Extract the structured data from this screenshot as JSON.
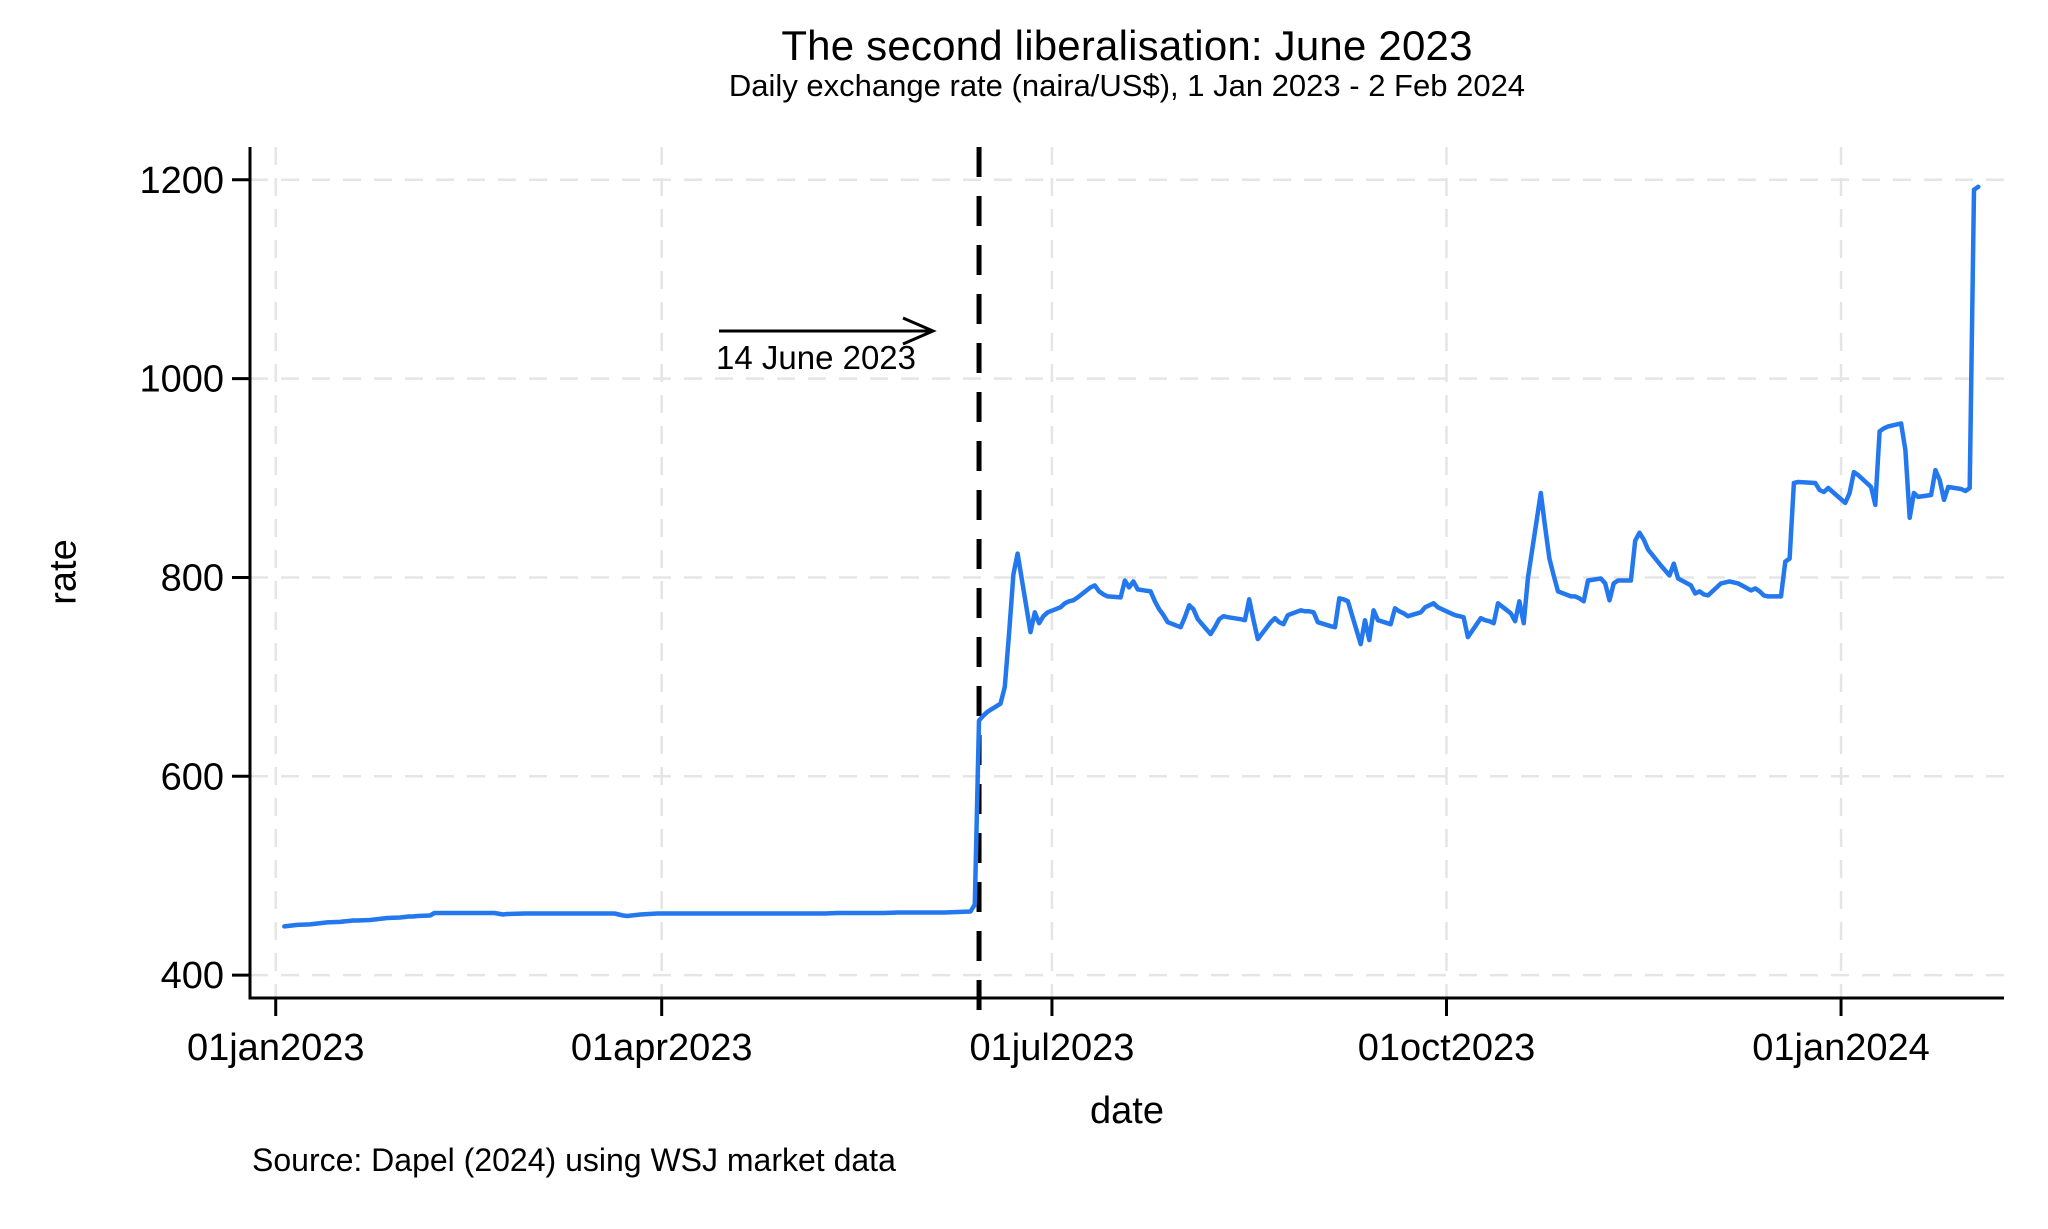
{
  "page": {
    "background": "#ffffff"
  },
  "chart_data": {
    "type": "line",
    "title": "The second liberalisation: June 2023",
    "subtitle": "Daily exchange rate (naira/US$), 1 Jan 2023 - 2 Feb 2024",
    "xlabel": "date",
    "ylabel": "rate",
    "source_note": "Source: Dapel (2024) using WSJ market data",
    "grid": true,
    "legend": "none",
    "ylim": [
      377,
      1233
    ],
    "xlim": [
      "2022-12-26",
      "2024-02-08"
    ],
    "y_ticks": [
      400,
      600,
      800,
      1000,
      1200
    ],
    "x_ticks": [
      {
        "label": "01jan2023",
        "date": "2023-01-01"
      },
      {
        "label": "01apr2023",
        "date": "2023-04-01"
      },
      {
        "label": "01jul2023",
        "date": "2023-07-01"
      },
      {
        "label": "01oct2023",
        "date": "2023-10-01"
      },
      {
        "label": "01jan2024",
        "date": "2024-01-01"
      }
    ],
    "reference_line": {
      "date": "2023-06-14",
      "color": "#000000",
      "style": "dashed"
    },
    "annotation": {
      "text": "14 June 2023",
      "arrow": true
    },
    "colors": {
      "series": "#2478ee",
      "grid": "#e5e5e5",
      "axis": "#000000"
    },
    "series": [
      {
        "name": "Daily exchange rate (naira/US$)",
        "color": "#2478ee",
        "points": [
          [
            "2023-01-03",
            449
          ],
          [
            "2023-01-04",
            449.5
          ],
          [
            "2023-01-05",
            450
          ],
          [
            "2023-01-06",
            450.5
          ],
          [
            "2023-01-09",
            451
          ],
          [
            "2023-01-10",
            451.5
          ],
          [
            "2023-01-11",
            452
          ],
          [
            "2023-01-12",
            452.5
          ],
          [
            "2023-01-13",
            453
          ],
          [
            "2023-01-16",
            453.5
          ],
          [
            "2023-01-17",
            454
          ],
          [
            "2023-01-18",
            454.5
          ],
          [
            "2023-01-19",
            455
          ],
          [
            "2023-01-20",
            455
          ],
          [
            "2023-01-23",
            455.5
          ],
          [
            "2023-01-24",
            456
          ],
          [
            "2023-01-25",
            456.5
          ],
          [
            "2023-01-26",
            457
          ],
          [
            "2023-01-27",
            457.5
          ],
          [
            "2023-01-30",
            458
          ],
          [
            "2023-01-31",
            458.5
          ],
          [
            "2023-02-01",
            459
          ],
          [
            "2023-02-02",
            459
          ],
          [
            "2023-02-03",
            459.5
          ],
          [
            "2023-02-06",
            460
          ],
          [
            "2023-02-07",
            462.5
          ],
          [
            "2023-02-08",
            462.5
          ],
          [
            "2023-02-10",
            462.5
          ],
          [
            "2023-02-14",
            462.5
          ],
          [
            "2023-02-17",
            462.5
          ],
          [
            "2023-02-21",
            462.5
          ],
          [
            "2023-02-23",
            461
          ],
          [
            "2023-02-24",
            461.5
          ],
          [
            "2023-02-28",
            462
          ],
          [
            "2023-03-03",
            462
          ],
          [
            "2023-03-07",
            462
          ],
          [
            "2023-03-10",
            462
          ],
          [
            "2023-03-14",
            462
          ],
          [
            "2023-03-17",
            462
          ],
          [
            "2023-03-21",
            462
          ],
          [
            "2023-03-23",
            460
          ],
          [
            "2023-03-24",
            459.5
          ],
          [
            "2023-03-27",
            461
          ],
          [
            "2023-03-29",
            461.5
          ],
          [
            "2023-03-31",
            462
          ],
          [
            "2023-04-04",
            462
          ],
          [
            "2023-04-07",
            462
          ],
          [
            "2023-04-11",
            462
          ],
          [
            "2023-04-14",
            462
          ],
          [
            "2023-04-18",
            462
          ],
          [
            "2023-04-21",
            462
          ],
          [
            "2023-04-25",
            462
          ],
          [
            "2023-04-28",
            462
          ],
          [
            "2023-05-02",
            462
          ],
          [
            "2023-05-05",
            462
          ],
          [
            "2023-05-09",
            462
          ],
          [
            "2023-05-12",
            462.5
          ],
          [
            "2023-05-16",
            462.5
          ],
          [
            "2023-05-19",
            462.5
          ],
          [
            "2023-05-23",
            462.5
          ],
          [
            "2023-05-26",
            463
          ],
          [
            "2023-05-30",
            463
          ],
          [
            "2023-06-02",
            463
          ],
          [
            "2023-06-06",
            463
          ],
          [
            "2023-06-09",
            463.5
          ],
          [
            "2023-06-12",
            464
          ],
          [
            "2023-06-13",
            471
          ],
          [
            "2023-06-14",
            656
          ],
          [
            "2023-06-15",
            661
          ],
          [
            "2023-06-16",
            665
          ],
          [
            "2023-06-19",
            673
          ],
          [
            "2023-06-20",
            690
          ],
          [
            "2023-06-21",
            744
          ],
          [
            "2023-06-22",
            803
          ],
          [
            "2023-06-23",
            824
          ],
          [
            "2023-06-26",
            745
          ],
          [
            "2023-06-27",
            765
          ],
          [
            "2023-06-28",
            754
          ],
          [
            "2023-06-29",
            761
          ],
          [
            "2023-06-30",
            765
          ],
          [
            "2023-07-03",
            770
          ],
          [
            "2023-07-04",
            774
          ],
          [
            "2023-07-05",
            776
          ],
          [
            "2023-07-06",
            777
          ],
          [
            "2023-07-07",
            780
          ],
          [
            "2023-07-10",
            790
          ],
          [
            "2023-07-11",
            792
          ],
          [
            "2023-07-12",
            786
          ],
          [
            "2023-07-13",
            783
          ],
          [
            "2023-07-14",
            781
          ],
          [
            "2023-07-17",
            780
          ],
          [
            "2023-07-18",
            797
          ],
          [
            "2023-07-19",
            790
          ],
          [
            "2023-07-20",
            796
          ],
          [
            "2023-07-21",
            788
          ],
          [
            "2023-07-24",
            786
          ],
          [
            "2023-07-25",
            776
          ],
          [
            "2023-07-26",
            768
          ],
          [
            "2023-07-27",
            762
          ],
          [
            "2023-07-28",
            755
          ],
          [
            "2023-07-31",
            750
          ],
          [
            "2023-08-01",
            760
          ],
          [
            "2023-08-02",
            772
          ],
          [
            "2023-08-03",
            768
          ],
          [
            "2023-08-04",
            758
          ],
          [
            "2023-08-07",
            743
          ],
          [
            "2023-08-08",
            750
          ],
          [
            "2023-08-09",
            758
          ],
          [
            "2023-08-10",
            761
          ],
          [
            "2023-08-11",
            760
          ],
          [
            "2023-08-14",
            758
          ],
          [
            "2023-08-15",
            757
          ],
          [
            "2023-08-16",
            778
          ],
          [
            "2023-08-17",
            757
          ],
          [
            "2023-08-18",
            738
          ],
          [
            "2023-08-21",
            755
          ],
          [
            "2023-08-22",
            759
          ],
          [
            "2023-08-23",
            755
          ],
          [
            "2023-08-24",
            753
          ],
          [
            "2023-08-25",
            762
          ],
          [
            "2023-08-28",
            767
          ],
          [
            "2023-08-29",
            766
          ],
          [
            "2023-08-30",
            766
          ],
          [
            "2023-08-31",
            765
          ],
          [
            "2023-09-01",
            755
          ],
          [
            "2023-09-04",
            751
          ],
          [
            "2023-09-05",
            750
          ],
          [
            "2023-09-06",
            779
          ],
          [
            "2023-09-07",
            778
          ],
          [
            "2023-09-08",
            776
          ],
          [
            "2023-09-11",
            733
          ],
          [
            "2023-09-12",
            757
          ],
          [
            "2023-09-13",
            737
          ],
          [
            "2023-09-14",
            767
          ],
          [
            "2023-09-15",
            757
          ],
          [
            "2023-09-18",
            753
          ],
          [
            "2023-09-19",
            769
          ],
          [
            "2023-09-20",
            766
          ],
          [
            "2023-09-21",
            764
          ],
          [
            "2023-09-22",
            761
          ],
          [
            "2023-09-25",
            765
          ],
          [
            "2023-09-26",
            770
          ],
          [
            "2023-09-27",
            772
          ],
          [
            "2023-09-28",
            774
          ],
          [
            "2023-09-29",
            770
          ],
          [
            "2023-10-02",
            764
          ],
          [
            "2023-10-03",
            762
          ],
          [
            "2023-10-04",
            761
          ],
          [
            "2023-10-05",
            760
          ],
          [
            "2023-10-06",
            740
          ],
          [
            "2023-10-09",
            759
          ],
          [
            "2023-10-10",
            757
          ],
          [
            "2023-10-11",
            756
          ],
          [
            "2023-10-12",
            754
          ],
          [
            "2023-10-13",
            774
          ],
          [
            "2023-10-16",
            764
          ],
          [
            "2023-10-17",
            756
          ],
          [
            "2023-10-18",
            776
          ],
          [
            "2023-10-19",
            754
          ],
          [
            "2023-10-20",
            800
          ],
          [
            "2023-10-23",
            885
          ],
          [
            "2023-10-24",
            851
          ],
          [
            "2023-10-25",
            819
          ],
          [
            "2023-10-26",
            802
          ],
          [
            "2023-10-27",
            786
          ],
          [
            "2023-10-30",
            781
          ],
          [
            "2023-10-31",
            781
          ],
          [
            "2023-11-01",
            779
          ],
          [
            "2023-11-02",
            776
          ],
          [
            "2023-11-03",
            797
          ],
          [
            "2023-11-06",
            799
          ],
          [
            "2023-11-07",
            794
          ],
          [
            "2023-11-08",
            777
          ],
          [
            "2023-11-09",
            794
          ],
          [
            "2023-11-10",
            797
          ],
          [
            "2023-11-13",
            797
          ],
          [
            "2023-11-14",
            837
          ],
          [
            "2023-11-15",
            845
          ],
          [
            "2023-11-16",
            838
          ],
          [
            "2023-11-17",
            828
          ],
          [
            "2023-11-20",
            812
          ],
          [
            "2023-11-21",
            807
          ],
          [
            "2023-11-22",
            802
          ],
          [
            "2023-11-23",
            814
          ],
          [
            "2023-11-24",
            799
          ],
          [
            "2023-11-27",
            792
          ],
          [
            "2023-11-28",
            784
          ],
          [
            "2023-11-29",
            786
          ],
          [
            "2023-11-30",
            783
          ],
          [
            "2023-12-01",
            782
          ],
          [
            "2023-12-04",
            794
          ],
          [
            "2023-12-05",
            795
          ],
          [
            "2023-12-06",
            796
          ],
          [
            "2023-12-07",
            795
          ],
          [
            "2023-12-08",
            794
          ],
          [
            "2023-12-11",
            787
          ],
          [
            "2023-12-12",
            789
          ],
          [
            "2023-12-13",
            786
          ],
          [
            "2023-12-14",
            782
          ],
          [
            "2023-12-15",
            781
          ],
          [
            "2023-12-18",
            781
          ],
          [
            "2023-12-19",
            816
          ],
          [
            "2023-12-20",
            819
          ],
          [
            "2023-12-21",
            895
          ],
          [
            "2023-12-22",
            896
          ],
          [
            "2023-12-26",
            895
          ],
          [
            "2023-12-27",
            888
          ],
          [
            "2023-12-28",
            886
          ],
          [
            "2023-12-29",
            890
          ],
          [
            "2024-01-02",
            875
          ],
          [
            "2024-01-03",
            885
          ],
          [
            "2024-01-04",
            906
          ],
          [
            "2024-01-05",
            903
          ],
          [
            "2024-01-08",
            891
          ],
          [
            "2024-01-09",
            873
          ],
          [
            "2024-01-10",
            947
          ],
          [
            "2024-01-11",
            950
          ],
          [
            "2024-01-12",
            952
          ],
          [
            "2024-01-15",
            955
          ],
          [
            "2024-01-16",
            928
          ],
          [
            "2024-01-17",
            860
          ],
          [
            "2024-01-18",
            885
          ],
          [
            "2024-01-19",
            881
          ],
          [
            "2024-01-22",
            883
          ],
          [
            "2024-01-23",
            908
          ],
          [
            "2024-01-24",
            898
          ],
          [
            "2024-01-25",
            878
          ],
          [
            "2024-01-26",
            891
          ],
          [
            "2024-01-29",
            889
          ],
          [
            "2024-01-30",
            887
          ],
          [
            "2024-01-31",
            890
          ],
          [
            "2024-02-01",
            1190
          ],
          [
            "2024-02-02",
            1193
          ]
        ]
      }
    ]
  }
}
